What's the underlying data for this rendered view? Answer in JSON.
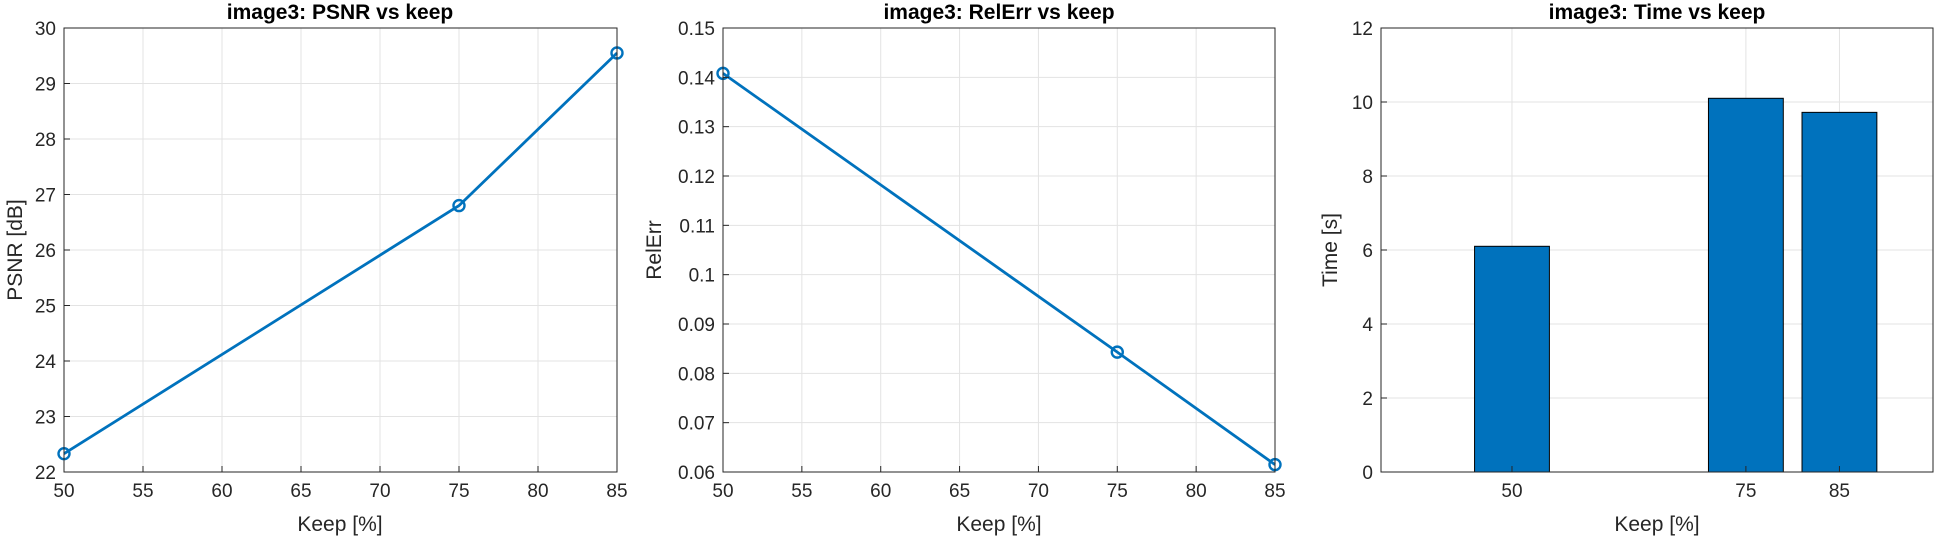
{
  "chart_data": [
    {
      "type": "line",
      "title": "image3: PSNR vs keep",
      "xlabel": "Keep [%]",
      "ylabel": "PSNR [dB]",
      "x": [
        50,
        75,
        85
      ],
      "series": [
        {
          "values": [
            22.33,
            26.8,
            29.55
          ]
        }
      ],
      "xlim": [
        50,
        85
      ],
      "ylim": [
        22,
        30
      ],
      "xticks": [
        "50",
        "55",
        "60",
        "65",
        "70",
        "75",
        "80",
        "85"
      ],
      "yticks": [
        "22",
        "23",
        "24",
        "25",
        "26",
        "27",
        "28",
        "29",
        "30"
      ],
      "markers": "open-circle",
      "grid": true,
      "color": "#0072BD"
    },
    {
      "type": "line",
      "title": "image3: RelErr vs keep",
      "xlabel": "Keep [%]",
      "ylabel": "RelErr",
      "x": [
        50,
        75,
        85
      ],
      "series": [
        {
          "values": [
            0.1408,
            0.0843,
            0.0615
          ]
        }
      ],
      "xlim": [
        50,
        85
      ],
      "ylim": [
        0.06,
        0.15
      ],
      "xticks": [
        "50",
        "55",
        "60",
        "65",
        "70",
        "75",
        "80",
        "85"
      ],
      "yticks": [
        "0.06",
        "0.07",
        "0.08",
        "0.09",
        "0.1",
        "0.11",
        "0.12",
        "0.13",
        "0.14",
        "0.15"
      ],
      "markers": "open-circle",
      "grid": true,
      "color": "#0072BD"
    },
    {
      "type": "bar",
      "title": "image3: Time vs keep",
      "xlabel": "Keep [%]",
      "ylabel": "Time [s]",
      "x": [
        50,
        75,
        85
      ],
      "categories": [
        "50",
        "75",
        "85"
      ],
      "values": [
        6.1,
        10.1,
        9.72
      ],
      "xlim": [
        36,
        95
      ],
      "ylim": [
        0,
        12
      ],
      "bar_width": 8,
      "yticks": [
        "0",
        "2",
        "4",
        "6",
        "8",
        "10",
        "12"
      ],
      "grid": true,
      "color": "#0072BD"
    }
  ]
}
